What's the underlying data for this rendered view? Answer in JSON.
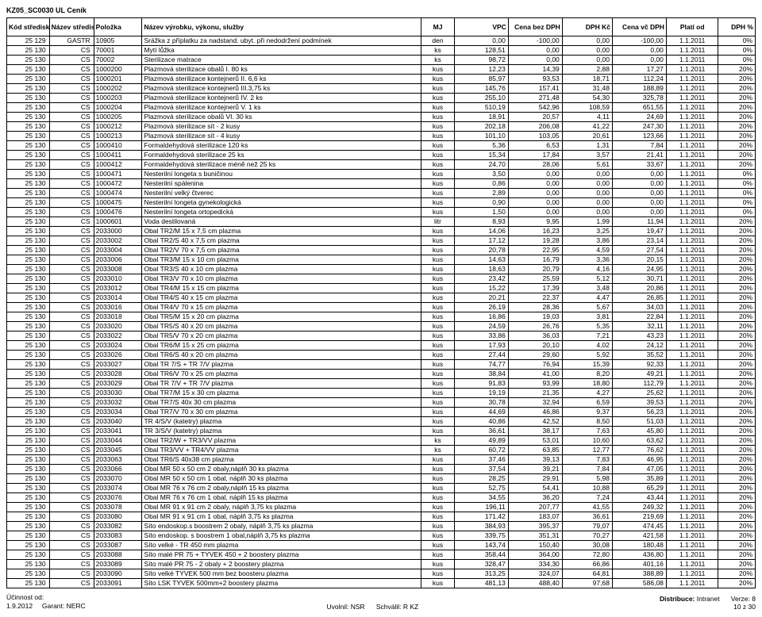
{
  "doc_title": "KZ05_SC0030 UL Ceník",
  "header": {
    "kod": "Kód střediska",
    "nazev": "Název střediska",
    "polozka": "Položka",
    "nazev_vyrobku": "Název výrobku, výkonu, služby",
    "mj": "MJ",
    "vpc": "VPC",
    "cena_bez": "Cena bez DPH",
    "dph_kc": "DPH Kč",
    "cena_vc": "Cena vč DPH",
    "plati_od": "Platí od",
    "dph_pct": "DPH %"
  },
  "rows": [
    [
      "25 129",
      "GASTR",
      "10905",
      "Srážka z příplatku za nadstand. ubyt. při nedodržení podmínek",
      "den",
      "0,00",
      "-100,00",
      "0,00",
      "-100,00",
      "1.1.2011",
      "0%"
    ],
    [
      "25 130",
      "CS",
      "70001",
      "Mytí lůžka",
      "ks",
      "128,51",
      "0,00",
      "0,00",
      "0,00",
      "1.1.2011",
      "0%"
    ],
    [
      "25 130",
      "CS",
      "70002",
      "Sterilizace matrace",
      "ks",
      "98,72",
      "0,00",
      "0,00",
      "0,00",
      "1.1.2011",
      "0%"
    ],
    [
      "25 130",
      "CS",
      "1000200",
      "Plazmová sterilizace obalů I.      80 ks",
      "kus",
      "12,23",
      "14,39",
      "2,88",
      "17,27",
      "1.1.2011",
      "20%"
    ],
    [
      "25 130",
      "CS",
      "1000201",
      "Plazmová sterilizace kontejnerů II.  6,6 ks",
      "kus",
      "85,97",
      "93,53",
      "18,71",
      "112,24",
      "1.1.2011",
      "20%"
    ],
    [
      "25 130",
      "CS",
      "1000202",
      "Plazmová sterilizace kontejnerů III.3,75 ks",
      "kus",
      "145,76",
      "157,41",
      "31,48",
      "188,89",
      "1.1.2011",
      "20%"
    ],
    [
      "25 130",
      "CS",
      "1000203",
      "Plazmová sterilizace kontejnerů IV. 2 ks",
      "kus",
      "255,10",
      "271,48",
      "54,30",
      "325,78",
      "1.1.2011",
      "20%"
    ],
    [
      "25 130",
      "CS",
      "1000204",
      "Plazmová sterilizace kontejnerů V. 1 ks",
      "kus",
      "510,19",
      "542,96",
      "108,59",
      "651,55",
      "1.1.2011",
      "20%"
    ],
    [
      "25 130",
      "CS",
      "1000205",
      "Plazmová sterilizace obalů VI.   30 ks",
      "kus",
      "18,91",
      "20,57",
      "4,11",
      "24,69",
      "1.1.2011",
      "20%"
    ],
    [
      "25 130",
      "CS",
      "1000212",
      "Plazmová sterilizace sít - 2 kusy",
      "kus",
      "202,18",
      "206,08",
      "41,22",
      "247,30",
      "1.1.2011",
      "20%"
    ],
    [
      "25 130",
      "CS",
      "1000213",
      "Plazmová sterilizace sít - 4 kusy",
      "kus",
      "101,10",
      "103,05",
      "20,61",
      "123,66",
      "1.1.2011",
      "20%"
    ],
    [
      "25 130",
      "CS",
      "1000410",
      "Formaldehydová sterilizace 120 ks",
      "kus",
      "5,36",
      "6,53",
      "1,31",
      "7,84",
      "1.1.2011",
      "20%"
    ],
    [
      "25 130",
      "CS",
      "1000411",
      "Formaldehydová sterilizace 25 ks",
      "kus",
      "15,34",
      "17,84",
      "3,57",
      "21,41",
      "1.1.2011",
      "20%"
    ],
    [
      "25 130",
      "CS",
      "1000412",
      "Formaldehydová sterilizace méně než 25 ks",
      "kus",
      "24,70",
      "28,06",
      "5,61",
      "33,67",
      "1.1.2011",
      "20%"
    ],
    [
      "25 130",
      "CS",
      "1000471",
      "Nesterilní longeta s buničinou",
      "kus",
      "3,50",
      "0,00",
      "0,00",
      "0,00",
      "1.1.2011",
      "0%"
    ],
    [
      "25 130",
      "CS",
      "1000472",
      "Nesterilní spálenina",
      "kus",
      "0,86",
      "0,00",
      "0,00",
      "0,00",
      "1.1.2011",
      "0%"
    ],
    [
      "25 130",
      "CS",
      "1000474",
      "Nesterilní velký čtverec",
      "kus",
      "2,89",
      "0,00",
      "0,00",
      "0,00",
      "1.1.2011",
      "0%"
    ],
    [
      "25 130",
      "CS",
      "1000475",
      "Nesterilní longeta gynekologická",
      "kus",
      "0,90",
      "0,00",
      "0,00",
      "0,00",
      "1.1.2011",
      "0%"
    ],
    [
      "25 130",
      "CS",
      "1000476",
      "Nesterilní longeta ortopedická",
      "kus",
      "1,50",
      "0,00",
      "0,00",
      "0,00",
      "1.1.2011",
      "0%"
    ],
    [
      "25 130",
      "CS",
      "1000601",
      "Voda destilovaná",
      "litr",
      "8,93",
      "9,95",
      "1,99",
      "11,94",
      "1.1.2011",
      "20%"
    ],
    [
      "25 130",
      "CS",
      "2033000",
      "Obal TR2/M          15 x 7,5 cm   plazma",
      "kus",
      "14,06",
      "16,23",
      "3,25",
      "19,47",
      "1.1.2011",
      "20%"
    ],
    [
      "25 130",
      "CS",
      "2033002",
      "Obal TR2/S          40 x 7,5 cm   plazma",
      "kus",
      "17,12",
      "19,28",
      "3,86",
      "23,14",
      "1.1.2011",
      "20%"
    ],
    [
      "25 130",
      "CS",
      "2033004",
      "Obal TR2/V          70 x 7,5 cm   plazma",
      "kus",
      "20,78",
      "22,95",
      "4,59",
      "27,54",
      "1.1.2011",
      "20%"
    ],
    [
      "25 130",
      "CS",
      "2033006",
      "Obal TR3/M          15 x 10 cm   plazma",
      "kus",
      "14,63",
      "16,79",
      "3,36",
      "20,15",
      "1.1.2011",
      "20%"
    ],
    [
      "25 130",
      "CS",
      "2033008",
      "Obal TR3/S          40 x 10 cm   plazma",
      "kus",
      "18,63",
      "20,79",
      "4,16",
      "24,95",
      "1.1.2011",
      "20%"
    ],
    [
      "25 130",
      "CS",
      "2033010",
      "Obal TR3/V          70 x 10 cm   plazma",
      "kus",
      "23,42",
      "25,59",
      "5,12",
      "30,71",
      "1.1.2011",
      "20%"
    ],
    [
      "25 130",
      "CS",
      "2033012",
      "Obal TR4/M          15 x 15 cm   plazma",
      "kus",
      "15,22",
      "17,39",
      "3,48",
      "20,86",
      "1.1.2011",
      "20%"
    ],
    [
      "25 130",
      "CS",
      "2033014",
      "Obal TR4/S          40 x 15 cm   plazma",
      "kus",
      "20,21",
      "22,37",
      "4,47",
      "26,85",
      "1.1.2011",
      "20%"
    ],
    [
      "25 130",
      "CS",
      "2033016",
      "Obal TR4/V          70 x 15 cm   plazma",
      "kus",
      "26,19",
      "28,36",
      "5,67",
      "34,03",
      "1.1.2011",
      "20%"
    ],
    [
      "25 130",
      "CS",
      "2033018",
      "Obal TR5/M          15 x 20 cm   plazma",
      "kus",
      "16,86",
      "19,03",
      "3,81",
      "22,84",
      "1.1.2011",
      "20%"
    ],
    [
      "25 130",
      "CS",
      "2033020",
      "Obal TR5/S          40 x 20 cm   plazma",
      "kus",
      "24,59",
      "26,76",
      "5,35",
      "32,11",
      "1.1.2011",
      "20%"
    ],
    [
      "25 130",
      "CS",
      "2033022",
      "Obal TR5/V          70 x 20 cm   plazma",
      "kus",
      "33,86",
      "36,03",
      "7,21",
      "43,23",
      "1.1.2011",
      "20%"
    ],
    [
      "25 130",
      "CS",
      "2033024",
      "Obal TR6/M          15 x 25 cm   plazma",
      "kus",
      "17,93",
      "20,10",
      "4,02",
      "24,12",
      "1.1.2011",
      "20%"
    ],
    [
      "25 130",
      "CS",
      "2033026",
      "Obal TR6/S          40 x 20 cm   plazma",
      "kus",
      "27,44",
      "29,60",
      "5,92",
      "35,52",
      "1.1.2011",
      "20%"
    ],
    [
      "25 130",
      "CS",
      "2033027",
      "Obal TR 7/S + TR 7/V         plazma",
      "kus",
      "74,77",
      "76,94",
      "15,39",
      "92,33",
      "1.1.2011",
      "20%"
    ],
    [
      "25 130",
      "CS",
      "2033028",
      "Obal TR6/V        70 x 25 cm   plazma",
      "kus",
      "38,84",
      "41,00",
      "8,20",
      "49,21",
      "1.1.2011",
      "20%"
    ],
    [
      "25 130",
      "CS",
      "2033029",
      "Obal TR 7/V + TR 7/V         plazma",
      "kus",
      "91,83",
      "93,99",
      "18,80",
      "112,79",
      "1.1.2011",
      "20%"
    ],
    [
      "25 130",
      "CS",
      "2033030",
      "Obal TR7/M          15 x 30 cm   plazma",
      "kus",
      "19,19",
      "21,35",
      "4,27",
      "25,62",
      "1.1.2011",
      "20%"
    ],
    [
      "25 130",
      "CS",
      "2033032",
      "Obal TR7/S          40x 30 cm   plazma",
      "kus",
      "30,78",
      "32,94",
      "6,59",
      "39,53",
      "1.1.2011",
      "20%"
    ],
    [
      "25 130",
      "CS",
      "2033034",
      "Obal TR7/V          70 x 30 cm   plazma",
      "kus",
      "44,69",
      "46,86",
      "9,37",
      "56,23",
      "1.1.2011",
      "20%"
    ],
    [
      "25 130",
      "CS",
      "2033040",
      "TR 4/S/V  (katetry)   plazma",
      "kus",
      "40,86",
      "42,52",
      "8,50",
      "51,03",
      "1.1.2011",
      "20%"
    ],
    [
      "25 130",
      "CS",
      "2033041",
      "TR 3/S/V  (katetry)   plazma",
      "kus",
      "36,61",
      "38,17",
      "7,63",
      "45,80",
      "1.1.2011",
      "20%"
    ],
    [
      "25 130",
      "CS",
      "2033044",
      "Obal TR2/W + TR3/VV    plazma",
      "ks",
      "49,89",
      "53,01",
      "10,60",
      "63,62",
      "1.1.2011",
      "20%"
    ],
    [
      "25 130",
      "CS",
      "2033045",
      "Obal TR3/VV + TR4/VV   plazma",
      "ks",
      "60,72",
      "63,85",
      "12,77",
      "76,62",
      "1.1.2011",
      "20%"
    ],
    [
      "25 130",
      "CS",
      "2033063",
      "Obal TR6/S 40x38 cm    plazma",
      "kus",
      "37,46",
      "39,13",
      "7,83",
      "46,95",
      "1.1.2011",
      "20%"
    ],
    [
      "25 130",
      "CS",
      "2033066",
      "Obal MR 50 x 50 cm      2 obaly,náplň 30 ks   plazma",
      "kus",
      "37,54",
      "39,21",
      "7,84",
      "47,05",
      "1.1.2011",
      "20%"
    ],
    [
      "25 130",
      "CS",
      "2033070",
      "Obal MR 50 x 50 cm      1 obal, náplň 30 ks   plazma",
      "kus",
      "28,25",
      "29,91",
      "5,98",
      "35,89",
      "1.1.2011",
      "20%"
    ],
    [
      "25 130",
      "CS",
      "2033074",
      "Obal MR 76 x 76 cm      2 obaly,náplň 15 ks   plazma",
      "kus",
      "52,75",
      "54,41",
      "10,88",
      "65,29",
      "1.1.2011",
      "20%"
    ],
    [
      "25 130",
      "CS",
      "2033076",
      "Obal MR 76 x 76 cm      1 obal, náplň 15 ks   plazma",
      "kus",
      "34,55",
      "36,20",
      "7,24",
      "43,44",
      "1.1.2011",
      "20%"
    ],
    [
      "25 130",
      "CS",
      "2033078",
      "Obal MR 91 x 91 cm      2 obaly, náplň 3,75 ks   plazma",
      "kus",
      "196,11",
      "207,77",
      "41,55",
      "249,32",
      "1.1.2011",
      "20%"
    ],
    [
      "25 130",
      "CS",
      "2033080",
      "Obal MR 91 x 91 cm      1 obal, náplň 3,75 ks   plazma",
      "kus",
      "171,42",
      "183,07",
      "36,61",
      "219,69",
      "1.1.2011",
      "20%"
    ],
    [
      "25 130",
      "CS",
      "2033082",
      "Síto endoskop.s boostrem   2 obaly, náplň 3,75 ks  plazma",
      "kus",
      "384,93",
      "395,37",
      "79,07",
      "474,45",
      "1.1.2011",
      "20%"
    ],
    [
      "25 130",
      "CS",
      "2033083",
      "Síto endoskop. s boostrem       1 obal,náplň 3,75 ks  plazma",
      "kus",
      "339,75",
      "351,31",
      "70,27",
      "421,58",
      "1.1.2011",
      "20%"
    ],
    [
      "25 130",
      "CS",
      "2033087",
      "Síto velké - TR 450 mm plazma",
      "kus",
      "143,74",
      "150,40",
      "30,08",
      "180,48",
      "1.1.2011",
      "20%"
    ],
    [
      "25 130",
      "CS",
      "2033088",
      "Síto malé PR 75 + TYVEK 450 + 2 boostery plazma",
      "kus",
      "358,44",
      "364,00",
      "72,80",
      "436,80",
      "1.1.2011",
      "20%"
    ],
    [
      "25 130",
      "CS",
      "2033089",
      "Síto malé PR 75 - 2 obaly + 2 boostery  plazma",
      "kus",
      "328,47",
      "334,30",
      "66,86",
      "401,16",
      "1.1.2011",
      "20%"
    ],
    [
      "25 130",
      "CS",
      "2033090",
      "Síto velké TYVEK 500 mm bez boosteru plazma",
      "kus",
      "313,25",
      "324,07",
      "64,81",
      "388,89",
      "1.1.2011",
      "20%"
    ],
    [
      "25 130",
      "CS",
      "2033091",
      "Síto LSK TYVEK 500mm+2 boostery plazma",
      "kus",
      "481,13",
      "488,40",
      "97,68",
      "586,08",
      "1.1.2011",
      "20%"
    ]
  ],
  "footer": {
    "ucinnost_label": "Účinnost od:",
    "ucinnost_value": "1.9.2012",
    "garant_label": "Garant:",
    "garant_value": "NERC",
    "uvolnil_label": "Uvolnil:",
    "uvolnil_value": "NSR",
    "schvalil_label": "Schválil:",
    "schvalil_value": "R KZ",
    "distribuce_label": "Distribuce:",
    "distribuce_value": "Intranet",
    "verze_label": "Verze:",
    "verze_value": "8",
    "page": "10 z 30"
  }
}
